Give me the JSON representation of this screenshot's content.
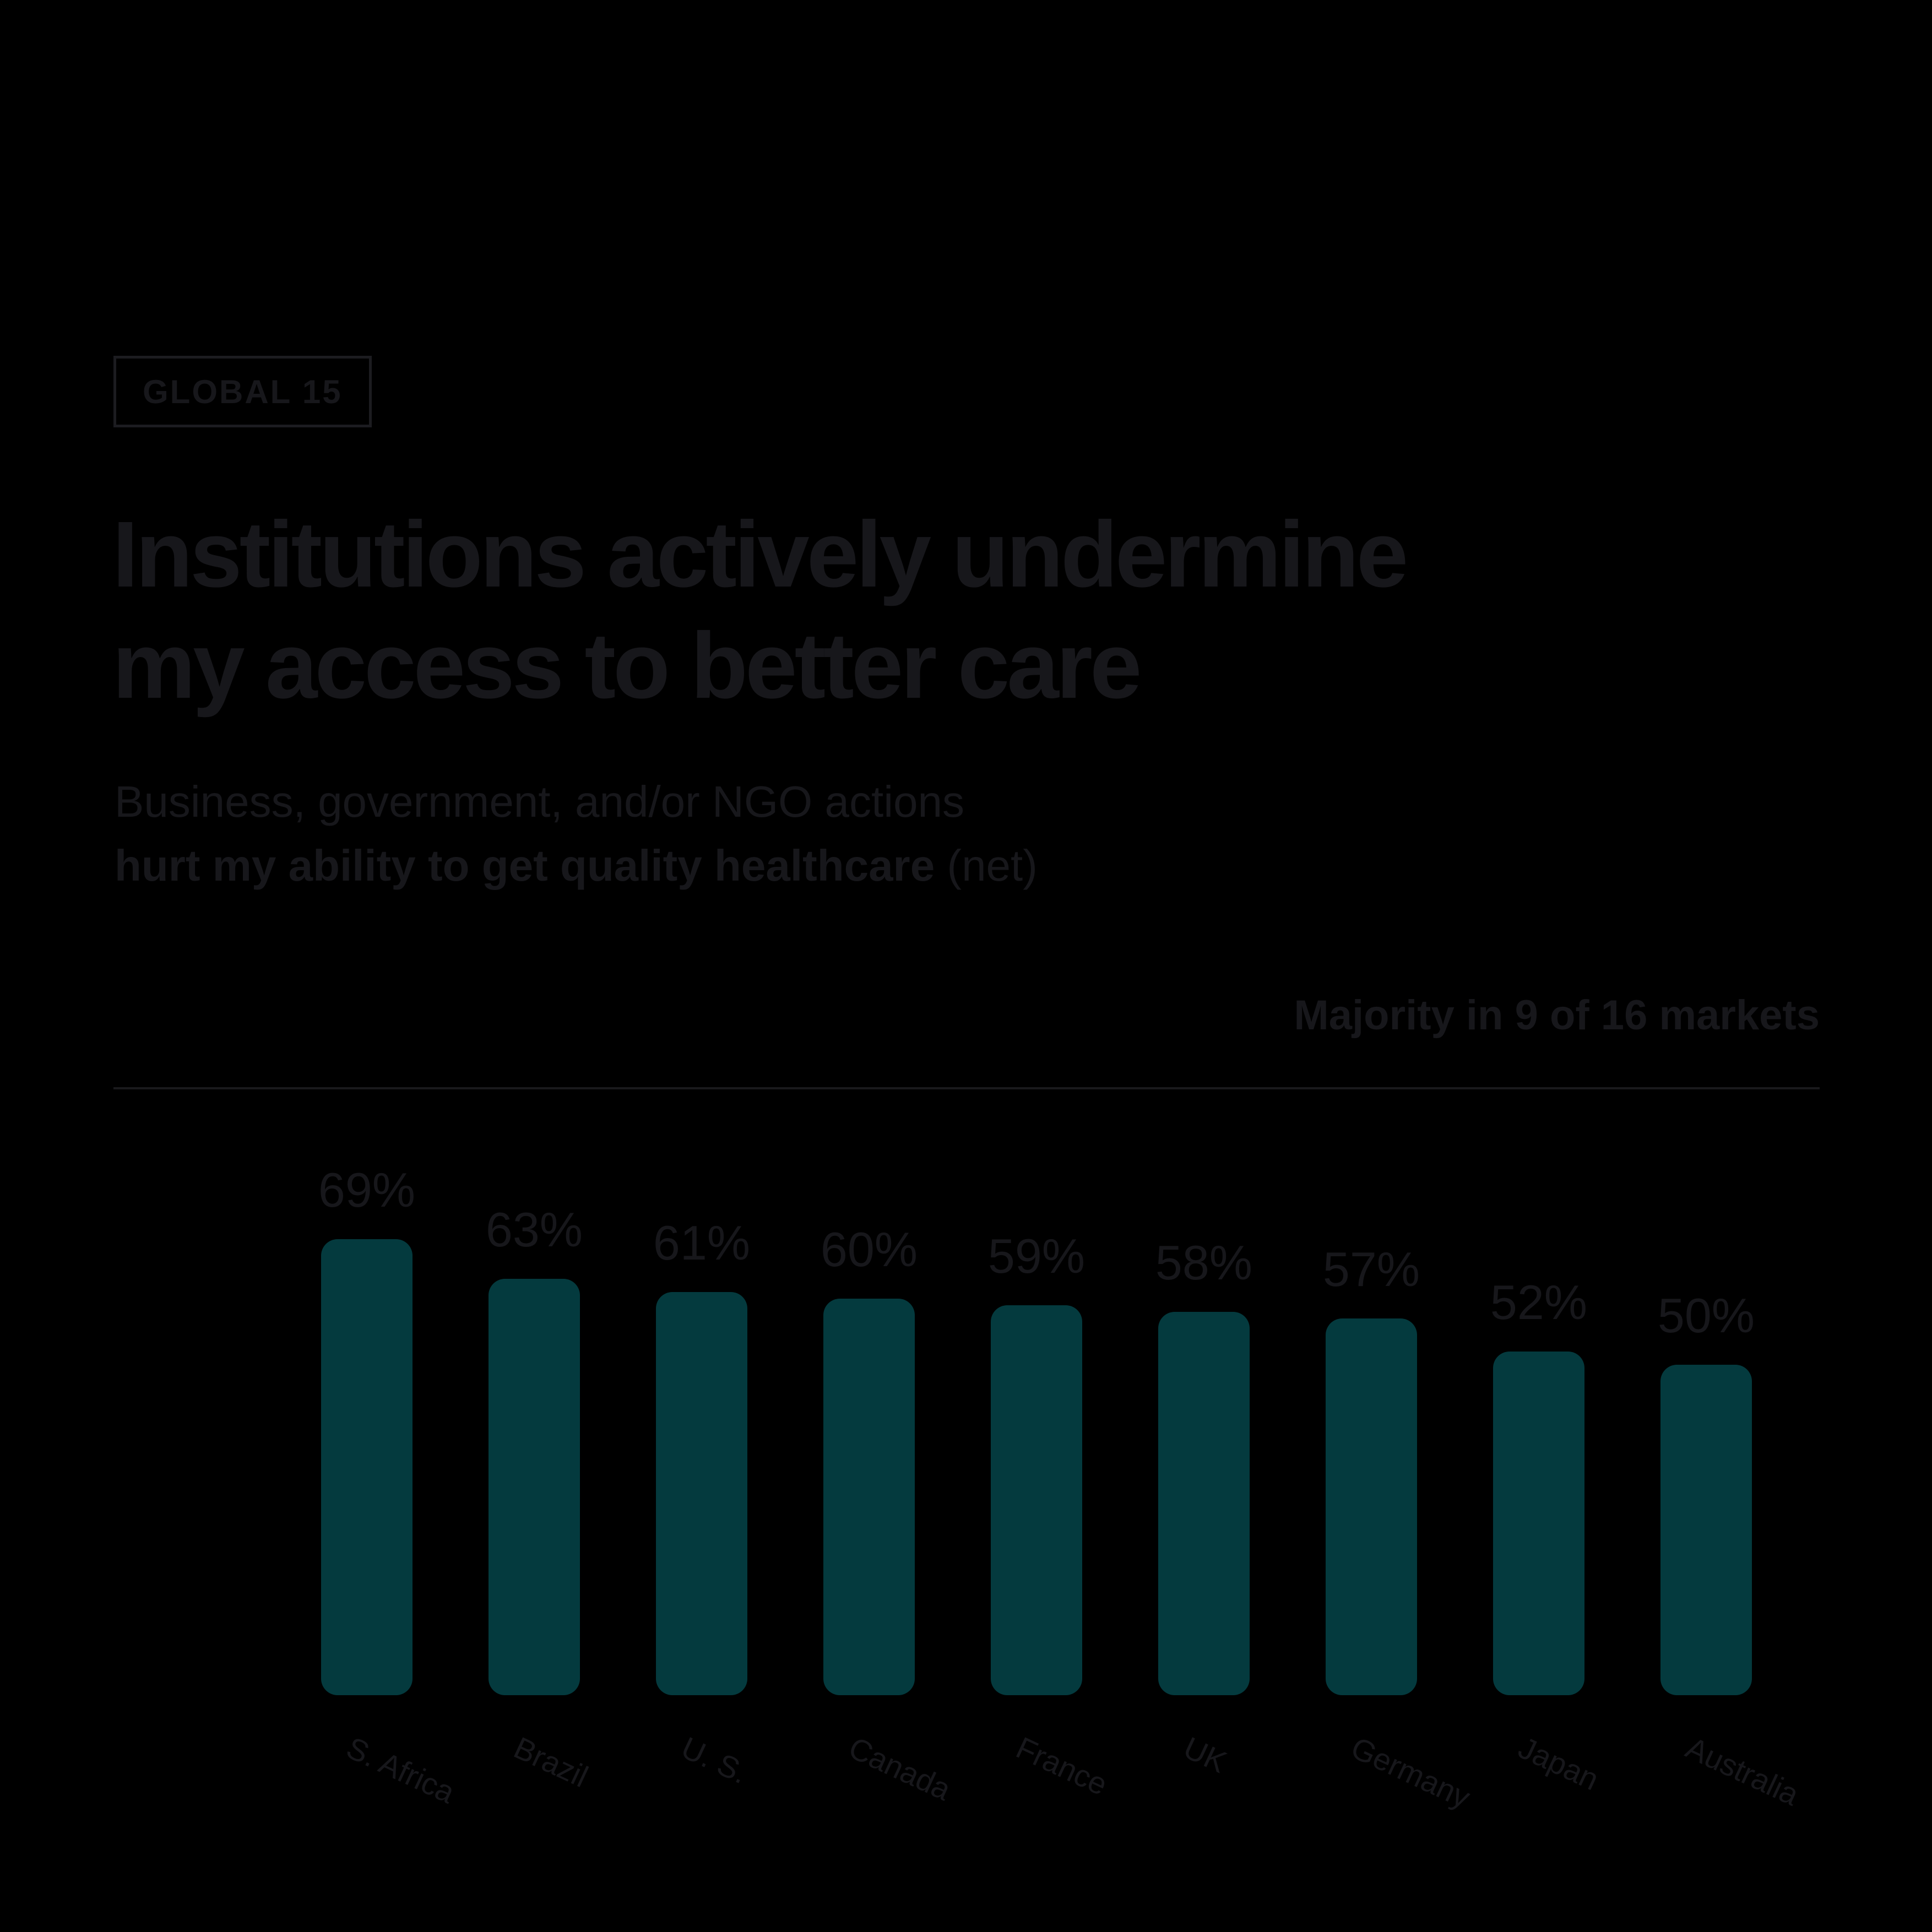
{
  "header": {
    "badge": "GLOBAL 15",
    "title_line1": "Institutions actively undermine",
    "title_line2": "my access to better care",
    "subtitle_line1": "Business, government, and/or NGO actions",
    "subtitle_bold": "hurt my ability to get quality healthcare",
    "subtitle_suffix": "(net)",
    "annotation": "Majority in 9 of 16 markets"
  },
  "colors": {
    "background": "#000000",
    "text": "#17171b",
    "bar": "#043a3e",
    "divider": "#19191c"
  },
  "chart_data": {
    "type": "bar",
    "title": "Institutions actively undermine my access to better care",
    "subtitle": "Business, government, and/or NGO actions hurt my ability to get quality healthcare (net)",
    "annotation": "Majority in 9 of 16 markets",
    "categories": [
      "S. Africa",
      "Brazil",
      "U. S.",
      "Canada",
      "France",
      "UK",
      "Germany",
      "Japan",
      "Australia"
    ],
    "values": [
      69,
      63,
      61,
      60,
      59,
      58,
      57,
      52,
      50
    ],
    "value_labels": [
      "69%",
      "63%",
      "61%",
      "60%",
      "59%",
      "58%",
      "57%",
      "52%",
      "50%"
    ],
    "xlabel": "",
    "ylabel": "",
    "ylim": [
      0,
      75
    ],
    "grid": false,
    "legend": false,
    "bar_color": "#043a3e",
    "value_label_position": "above",
    "category_label_rotation_deg": 25
  }
}
